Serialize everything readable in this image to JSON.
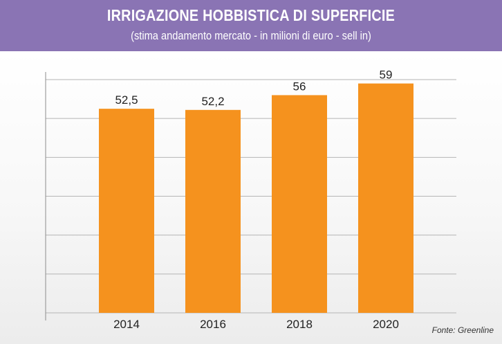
{
  "header": {
    "title": "IRRIGAZIONE HOBBISTICA DI SUPERFICIE",
    "subtitle": "(stima andamento mercato - in milioni di euro - sell in)"
  },
  "source": "Fonte: Greenline",
  "colors": {
    "header_bg": "#8a74b4",
    "bar": "#f5921e",
    "grid": "#b5b5b5"
  },
  "chart_data": {
    "type": "bar",
    "title": "IRRIGAZIONE HOBBISTICA DI SUPERFICIE",
    "subtitle": "(stima andamento mercato - in milioni di euro - sell in)",
    "categories": [
      "2014",
      "2016",
      "2018",
      "2020"
    ],
    "values": [
      52.5,
      52.2,
      56,
      59
    ],
    "value_labels": [
      "52,5",
      "52,2",
      "56",
      "59"
    ],
    "xlabel": "",
    "ylabel": "",
    "ylim": [
      0,
      60
    ],
    "y_gridlines": [
      0,
      10,
      20,
      30,
      40,
      50,
      60
    ],
    "grid": true,
    "legend": "none"
  }
}
